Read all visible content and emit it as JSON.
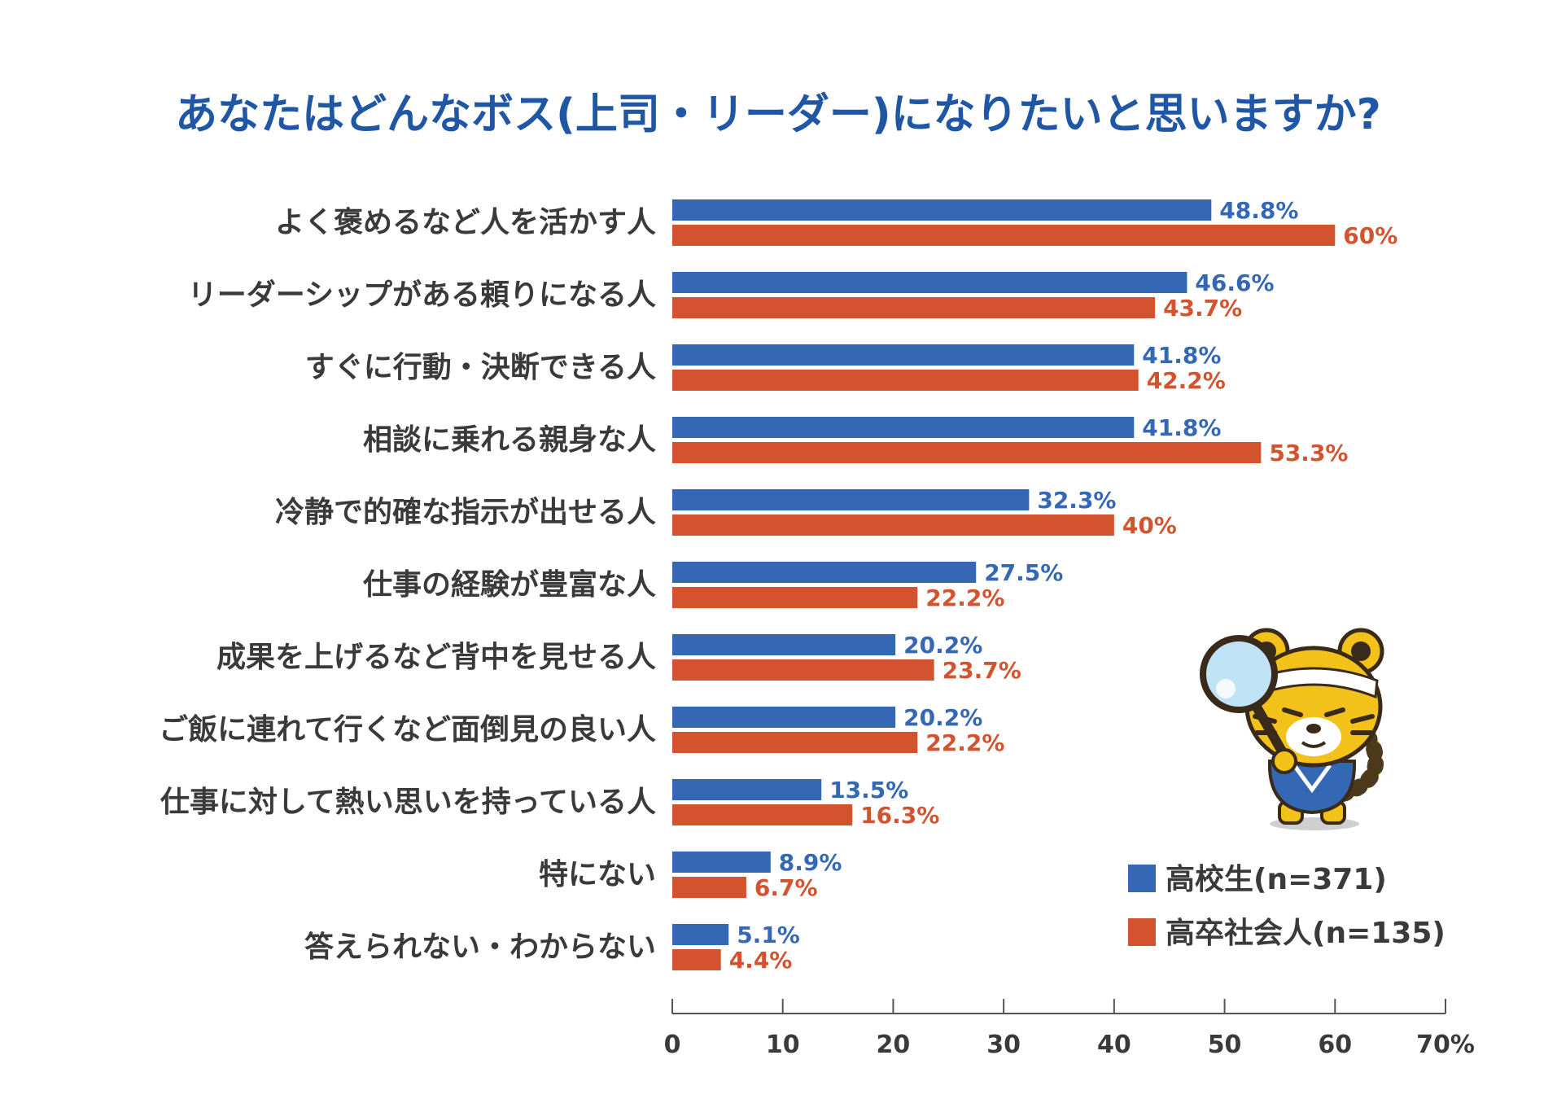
{
  "chart_data": {
    "type": "bar",
    "orientation": "horizontal",
    "title": "あなたはどんなボス(上司・リーダー)になりたいと思いますか?",
    "categories": [
      "よく褒めるなど人を活かす人",
      "リーダーシップがある頼りになる人",
      "すぐに行動・決断できる人",
      "相談に乗れる親身な人",
      "冷静で的確な指示が出せる人",
      "仕事の経験が豊富な人",
      "成果を上げるなど背中を見せる人",
      "ご飯に連れて行くなど面倒見の良い人",
      "仕事に対して熱い思いを持っている人",
      "特にない",
      "答えられない・わからない"
    ],
    "series": [
      {
        "name": "高校生(n=371)",
        "color": "#3468b5",
        "values": [
          48.8,
          46.6,
          41.8,
          41.8,
          32.3,
          27.5,
          20.2,
          20.2,
          13.5,
          8.9,
          5.1
        ],
        "labels": [
          "48.8%",
          "46.6%",
          "41.8%",
          "41.8%",
          "32.3%",
          "27.5%",
          "20.2%",
          "20.2%",
          "13.5%",
          "8.9%",
          "5.1%"
        ]
      },
      {
        "name": "高卒社会人(n=135)",
        "color": "#d4532f",
        "values": [
          60,
          43.7,
          42.2,
          53.3,
          40,
          22.2,
          23.7,
          22.2,
          16.3,
          6.7,
          4.4
        ],
        "labels": [
          "60%",
          "43.7%",
          "42.2%",
          "53.3%",
          "40%",
          "22.2%",
          "23.7%",
          "22.2%",
          "16.3%",
          "6.7%",
          "4.4%"
        ]
      }
    ],
    "xlim": [
      0,
      70
    ],
    "ticks": [
      "0",
      "10",
      "20",
      "30",
      "40",
      "50",
      "60",
      "70%"
    ],
    "legend": "bottom-right",
    "grid": false
  }
}
